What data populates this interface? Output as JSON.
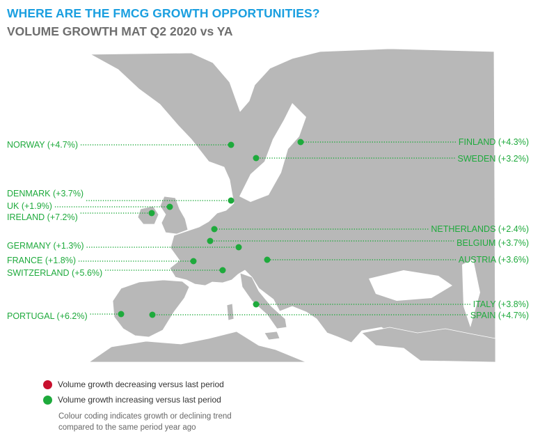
{
  "header": {
    "title": "WHERE ARE THE FMCG GROWTH OPPORTUNITIES?",
    "subtitle": "VOLUME GROWTH MAT Q2 2020 vs YA"
  },
  "colors": {
    "title": "#1a9fe0",
    "subtitle": "#6e6e6e",
    "growth_increasing": "#1eaa3c",
    "growth_decreasing": "#c8102e",
    "land": "#b8b8b8",
    "land_border": "#ffffff"
  },
  "countries": [
    {
      "id": "norway",
      "label": "NORWAY (+4.7%)",
      "status": "increasing"
    },
    {
      "id": "finland",
      "label": "FINLAND (+4.3%)",
      "status": "increasing"
    },
    {
      "id": "sweden",
      "label": "SWEDEN (+3.2%)",
      "status": "increasing"
    },
    {
      "id": "denmark",
      "label": "DENMARK (+3.7%)",
      "status": "increasing"
    },
    {
      "id": "uk",
      "label": "UK (+1.9%)",
      "status": "increasing"
    },
    {
      "id": "ireland",
      "label": "IRELAND (+7.2%)",
      "status": "increasing"
    },
    {
      "id": "netherlands",
      "label": "NETHERLANDS (+2.4%)",
      "status": "increasing"
    },
    {
      "id": "germany",
      "label": "GERMANY (+1.3%)",
      "status": "increasing"
    },
    {
      "id": "belgium",
      "label": "BELGIUM (+3.7%)",
      "status": "increasing"
    },
    {
      "id": "france",
      "label": "FRANCE (+1.8%)",
      "status": "increasing"
    },
    {
      "id": "austria",
      "label": "AUSTRIA (+3.6%)",
      "status": "increasing"
    },
    {
      "id": "switzerland",
      "label": "SWITZERLAND (+5.6%)",
      "status": "increasing"
    },
    {
      "id": "italy",
      "label": "ITALY (+3.8%)",
      "status": "increasing"
    },
    {
      "id": "portugal",
      "label": "PORTUGAL (+6.2%)",
      "status": "increasing"
    },
    {
      "id": "spain",
      "label": "SPAIN (+4.7%)",
      "status": "increasing"
    }
  ],
  "legend": {
    "decreasing": "Volume growth decreasing versus last period",
    "increasing": "Volume growth increasing versus last period",
    "note": "Colour coding indicates growth or declining trend compared to the same period year ago"
  }
}
